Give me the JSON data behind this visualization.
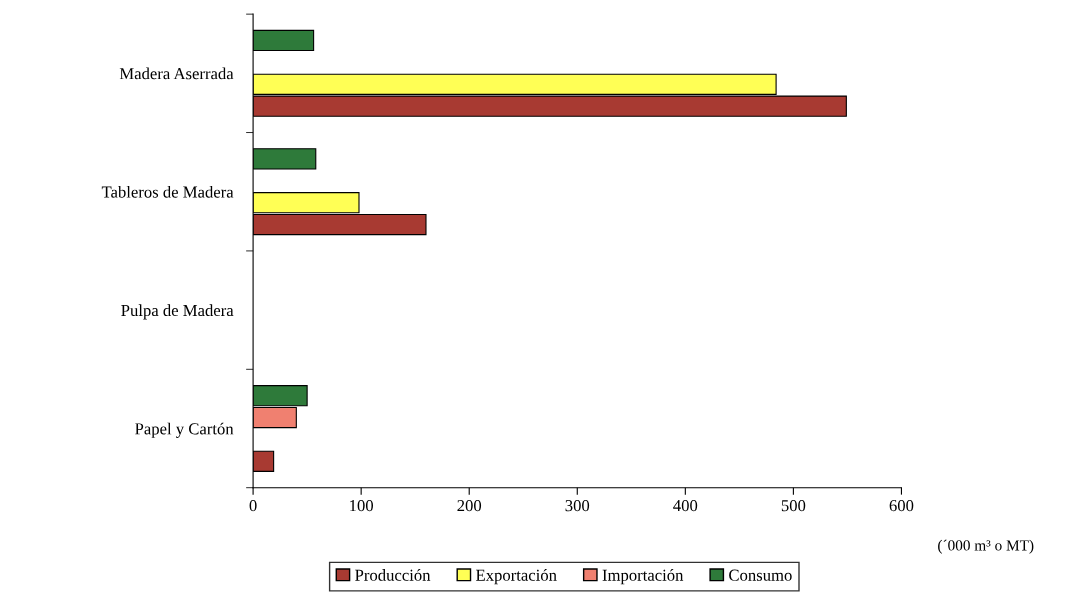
{
  "chart_data": {
    "type": "bar",
    "orientation": "horizontal",
    "xlabel": "(´000 m³ o MT)",
    "categories": [
      "Madera Aserrada",
      "Tableros de Madera",
      "Pulpa de Madera",
      "Papel y Cartón"
    ],
    "series": [
      {
        "name": "Producción",
        "color": "#a83a32",
        "values": [
          549,
          160,
          null,
          19
        ]
      },
      {
        "name": "Exportación",
        "color": "#ffff55",
        "values": [
          484,
          98,
          null,
          null
        ]
      },
      {
        "name": "Importación",
        "color": "#f08070",
        "values": [
          null,
          null,
          null,
          40
        ]
      },
      {
        "name": "Consumo",
        "color": "#2e7a3a",
        "values": [
          56,
          58,
          null,
          50
        ]
      }
    ],
    "xlim": [
      0,
      600
    ],
    "xticks": [
      0,
      100,
      200,
      300,
      400,
      500,
      600
    ],
    "grid": false,
    "legend": "bottom"
  }
}
